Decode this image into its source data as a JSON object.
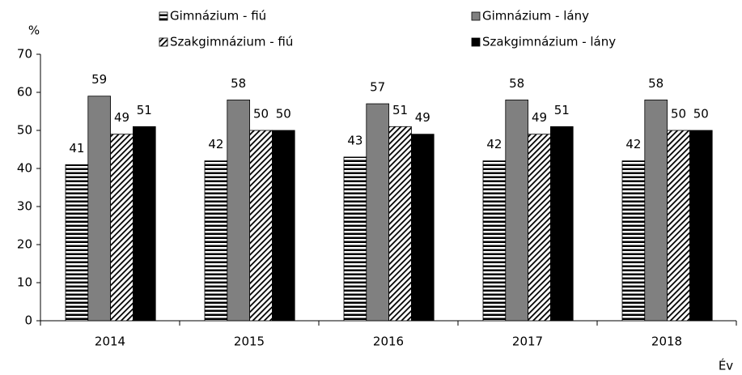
{
  "chart_data": {
    "type": "bar",
    "y_label": "%",
    "x_label": "Év",
    "categories": [
      "2014",
      "2015",
      "2016",
      "2017",
      "2018"
    ],
    "series": [
      {
        "name": "Gimnázium - fiú",
        "color": "#000000",
        "pattern": "horizontal",
        "values": [
          41,
          42,
          43,
          42,
          42
        ]
      },
      {
        "name": "Gimnázium - lány",
        "color": "#808080",
        "values": [
          59,
          58,
          57,
          58,
          58
        ]
      },
      {
        "name": "Szakgimnázium - fiú",
        "color": "#000000",
        "pattern": "diagonal",
        "values": [
          49,
          50,
          51,
          49,
          50
        ]
      },
      {
        "name": "Szakgimnázium - lány",
        "color": "#000000",
        "values": [
          51,
          50,
          49,
          51,
          50
        ]
      }
    ],
    "ylim": [
      0,
      70
    ],
    "yticks": [
      0,
      10,
      20,
      30,
      40,
      50,
      60,
      70
    ],
    "grid": false
  }
}
